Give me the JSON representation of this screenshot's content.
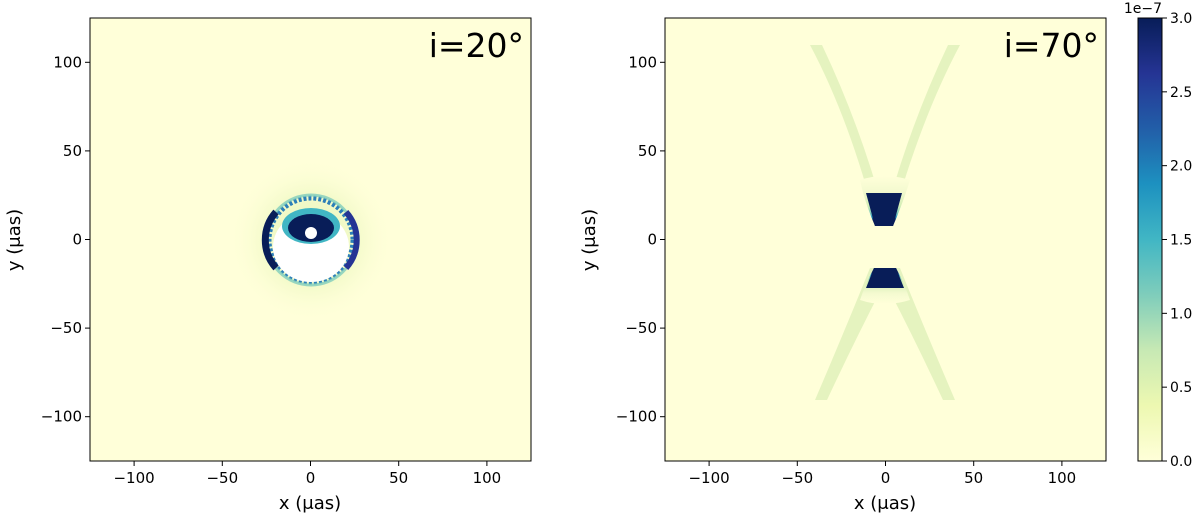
{
  "chart_data": [
    {
      "type": "heatmap",
      "panel_label": "i=20°",
      "xlabel": "x (μas)",
      "ylabel": "y (μas)",
      "xlim": [
        -125,
        125
      ],
      "ylim": [
        -125,
        125
      ],
      "xticks": [
        -100,
        -50,
        0,
        50,
        100
      ],
      "yticks": [
        -100,
        -50,
        0,
        50,
        100
      ],
      "xtick_labels": [
        "−100",
        "−50",
        "0",
        "50",
        "100"
      ],
      "ytick_labels": [
        "−100",
        "−50",
        "0",
        "50",
        "100"
      ],
      "features": {
        "outer_ring_radius": 26,
        "outer_ring_center": [
          0,
          0
        ],
        "inner_dark_center": [
          0,
          5
        ],
        "inner_dark_radii": [
          13,
          8
        ],
        "bright_spot_center": [
          0,
          4
        ],
        "bright_spot_radius": 3.5
      },
      "grid": false
    },
    {
      "type": "heatmap",
      "panel_label": "i=70°",
      "xlabel": "x (μas)",
      "ylabel": "y (μas)",
      "xlim": [
        -125,
        125
      ],
      "ylim": [
        -125,
        125
      ],
      "xticks": [
        -100,
        -50,
        0,
        50,
        100
      ],
      "yticks": [
        -100,
        -50,
        0,
        50,
        100
      ],
      "xtick_labels": [
        "−100",
        "−50",
        "0",
        "50",
        "100"
      ],
      "ytick_labels": [
        "−100",
        "−50",
        "0",
        "50",
        "100"
      ],
      "features": {
        "upper_cone_vertex": [
          0,
          9
        ],
        "lower_cone_vertex": [
          0,
          -15
        ],
        "cone_extent": 110
      },
      "grid": false
    }
  ],
  "colorbar": {
    "colormap": "YlGnBu",
    "min": 0.0,
    "max": 3.0,
    "ticks": [
      0.0,
      0.5,
      1.0,
      1.5,
      2.0,
      2.5,
      3.0
    ],
    "tick_labels": [
      "0.0",
      "0.5",
      "1.0",
      "1.5",
      "2.0",
      "2.5",
      "3.0"
    ],
    "exponent_label": "1e−7",
    "colors": [
      "#ffffd9",
      "#edf8b1",
      "#c7e9b4",
      "#7fcdbb",
      "#41b6c4",
      "#1d91c0",
      "#225ea8",
      "#253494",
      "#081d58"
    ]
  }
}
